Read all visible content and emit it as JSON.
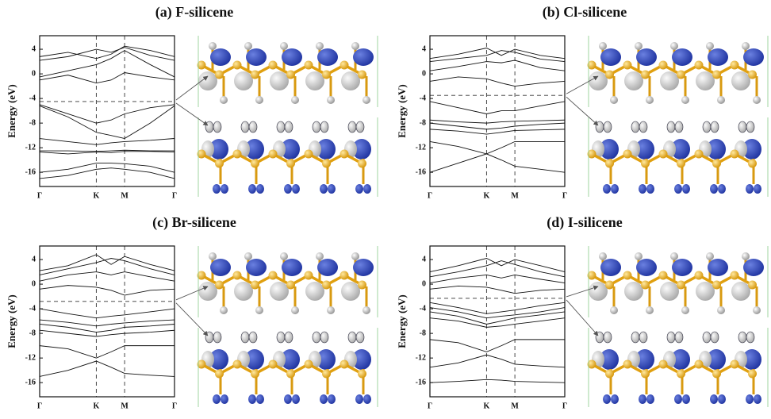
{
  "chart_data": [
    {
      "type": "line",
      "title": "(a) F-silicene",
      "y_label": "Energy (eV)",
      "x": [
        0,
        0.21,
        0.42,
        0.53,
        0.63,
        0.82,
        1
      ],
      "xlim": [
        0,
        1
      ],
      "xticks": [
        {
          "value": 0,
          "label": "Γ"
        },
        {
          "value": 0.42,
          "label": "K"
        },
        {
          "value": 0.63,
          "label": "M"
        },
        {
          "value": 1,
          "label": "Γ"
        }
      ],
      "ylim": [
        -18.3,
        6.2
      ],
      "yticks": [
        4,
        0,
        -4,
        -8,
        -12,
        -16
      ],
      "fermi_level": -4.5,
      "series": [
        {
          "color": "#111111",
          "values": [
            2.8,
            3.5,
            2.5,
            3.2,
            4.5,
            3.8,
            2.8
          ]
        },
        {
          "color": "#111111",
          "values": [
            2.2,
            2.8,
            4.0,
            3.5,
            4.3,
            3.0,
            2.2
          ]
        },
        {
          "color": "#111111",
          "values": [
            -0.5,
            0.5,
            1.5,
            2.5,
            3.8,
            1.5,
            -0.5
          ]
        },
        {
          "color": "#111111",
          "values": [
            -1.0,
            -0.2,
            -1.5,
            -1.0,
            0.2,
            -0.5,
            -1.0
          ]
        },
        {
          "color": "#111111",
          "values": [
            -5,
            -6.5,
            -8,
            -7.5,
            -6.5,
            -5.5,
            -5
          ]
        },
        {
          "color": "#111111",
          "values": [
            -5.2,
            -7,
            -9.5,
            -10,
            -10.5,
            -8,
            -5.2
          ]
        },
        {
          "color": "#111111",
          "values": [
            -10.5,
            -11,
            -11.5,
            -11.2,
            -11,
            -10.8,
            -10.5
          ]
        },
        {
          "color": "#111111",
          "values": [
            -12.5,
            -12.5,
            -12.6,
            -12.5,
            -12.4,
            -12.5,
            -12.5
          ]
        },
        {
          "color": "#111111",
          "values": [
            -12.7,
            -13,
            -12.7,
            -12.8,
            -12.6,
            -12.6,
            -12.7
          ]
        },
        {
          "color": "#111111",
          "values": [
            -16,
            -15.5,
            -14.5,
            -14.5,
            -14.6,
            -15,
            -16
          ]
        },
        {
          "color": "#111111",
          "values": [
            -17,
            -16.5,
            -15.5,
            -15.3,
            -15.5,
            -16,
            -17
          ]
        }
      ]
    },
    {
      "type": "line",
      "title": "(b) Cl-silicene",
      "y_label": "Energy (eV)",
      "x": [
        0,
        0.21,
        0.42,
        0.53,
        0.63,
        0.82,
        1
      ],
      "xlim": [
        0,
        1
      ],
      "xticks": [
        {
          "value": 0,
          "label": "Γ"
        },
        {
          "value": 0.42,
          "label": "K"
        },
        {
          "value": 0.63,
          "label": "M"
        },
        {
          "value": 1,
          "label": "Γ"
        }
      ],
      "ylim": [
        -18.3,
        6.2
      ],
      "yticks": [
        4,
        0,
        -4,
        -8,
        -12,
        -16
      ],
      "fermi_level": -3.5,
      "series": [
        {
          "color": "#111111",
          "values": [
            2.5,
            3.2,
            4.2,
            3.0,
            4.0,
            3.0,
            2.5
          ]
        },
        {
          "color": "#111111",
          "values": [
            2.0,
            2.5,
            3.0,
            3.8,
            3.5,
            2.4,
            2.0
          ]
        },
        {
          "color": "#111111",
          "values": [
            0.5,
            1.2,
            2.0,
            1.8,
            2.2,
            1.0,
            0.5
          ]
        },
        {
          "color": "#111111",
          "values": [
            -1.2,
            -0.5,
            -0.8,
            -1.5,
            -2.0,
            -1.5,
            -1.2
          ]
        },
        {
          "color": "#111111",
          "values": [
            -4.5,
            -5.5,
            -6.5,
            -6.0,
            -6.0,
            -5.2,
            -4.5
          ]
        },
        {
          "color": "#111111",
          "values": [
            -7.5,
            -7.8,
            -8.0,
            -7.8,
            -7.7,
            -7.6,
            -7.5
          ]
        },
        {
          "color": "#111111",
          "values": [
            -8.0,
            -8.5,
            -9.0,
            -8.8,
            -8.5,
            -8.2,
            -8.0
          ]
        },
        {
          "color": "#111111",
          "values": [
            -9.0,
            -9.3,
            -9.8,
            -9.5,
            -9.2,
            -9.1,
            -9.0
          ]
        },
        {
          "color": "#111111",
          "values": [
            -11.0,
            -11.8,
            -13.0,
            -12.0,
            -11.0,
            -11.0,
            -11.0
          ]
        },
        {
          "color": "#111111",
          "values": [
            -16.0,
            -14.5,
            -13.0,
            -14.0,
            -15.0,
            -15.5,
            -16.0
          ]
        }
      ]
    },
    {
      "type": "line",
      "title": "(c) Br-silicene",
      "y_label": "Energy (eV)",
      "x": [
        0,
        0.21,
        0.42,
        0.53,
        0.63,
        0.82,
        1
      ],
      "xlim": [
        0,
        1
      ],
      "xticks": [
        {
          "value": 0,
          "label": "Γ"
        },
        {
          "value": 0.42,
          "label": "K"
        },
        {
          "value": 0.63,
          "label": "M"
        },
        {
          "value": 1,
          "label": "Γ"
        }
      ],
      "ylim": [
        -18.3,
        6.2
      ],
      "yticks": [
        4,
        0,
        -4,
        -8,
        -12,
        -16
      ],
      "fermi_level": -2.8,
      "series": [
        {
          "color": "#111111",
          "values": [
            2.2,
            3.0,
            4.8,
            3.2,
            4.5,
            3.2,
            2.2
          ]
        },
        {
          "color": "#111111",
          "values": [
            1.5,
            2.5,
            3.5,
            4.2,
            3.8,
            2.5,
            1.5
          ]
        },
        {
          "color": "#111111",
          "values": [
            0.5,
            1.5,
            2.0,
            1.5,
            2.0,
            1.2,
            0.5
          ]
        },
        {
          "color": "#111111",
          "values": [
            -0.8,
            -0.2,
            -0.5,
            -1.0,
            -1.8,
            -1.0,
            -0.8
          ]
        },
        {
          "color": "#111111",
          "values": [
            -4.0,
            -4.8,
            -5.5,
            -5.2,
            -5.0,
            -4.5,
            -4.0
          ]
        },
        {
          "color": "#111111",
          "values": [
            -5.8,
            -6.2,
            -6.8,
            -6.5,
            -6.3,
            -6.0,
            -5.8
          ]
        },
        {
          "color": "#111111",
          "values": [
            -6.5,
            -7.0,
            -7.8,
            -7.5,
            -7.0,
            -6.8,
            -6.5
          ]
        },
        {
          "color": "#111111",
          "values": [
            -7.5,
            -8.0,
            -8.5,
            -8.2,
            -8.0,
            -7.8,
            -7.5
          ]
        },
        {
          "color": "#111111",
          "values": [
            -10.0,
            -10.5,
            -12.0,
            -11.0,
            -10.0,
            -10.0,
            -10.0
          ]
        },
        {
          "color": "#111111",
          "values": [
            -15.0,
            -14.0,
            -12.5,
            -13.5,
            -14.5,
            -14.8,
            -15.0
          ]
        }
      ]
    },
    {
      "type": "line",
      "title": "(d) I-silicene",
      "y_label": "Energy (eV)",
      "x": [
        0,
        0.21,
        0.42,
        0.53,
        0.63,
        0.82,
        1
      ],
      "xlim": [
        0,
        1
      ],
      "xticks": [
        {
          "value": 0,
          "label": "Γ"
        },
        {
          "value": 0.42,
          "label": "K"
        },
        {
          "value": 0.63,
          "label": "M"
        },
        {
          "value": 1,
          "label": "Γ"
        }
      ],
      "ylim": [
        -18.3,
        6.2
      ],
      "yticks": [
        4,
        0,
        -4,
        -8,
        -12,
        -16
      ],
      "fermi_level": -2.3,
      "series": [
        {
          "color": "#111111",
          "values": [
            2.0,
            3.0,
            4.2,
            3.0,
            4.0,
            3.0,
            2.0
          ]
        },
        {
          "color": "#111111",
          "values": [
            1.2,
            2.0,
            3.0,
            3.8,
            3.2,
            2.0,
            1.2
          ]
        },
        {
          "color": "#111111",
          "values": [
            0.2,
            1.0,
            1.5,
            1.0,
            1.5,
            0.8,
            0.2
          ]
        },
        {
          "color": "#111111",
          "values": [
            -0.8,
            -0.3,
            -0.5,
            -1.0,
            -1.5,
            -1.0,
            -0.8
          ]
        },
        {
          "color": "#111111",
          "values": [
            -3.0,
            -3.8,
            -4.8,
            -4.5,
            -4.2,
            -3.5,
            -3.0
          ]
        },
        {
          "color": "#111111",
          "values": [
            -3.8,
            -4.5,
            -5.5,
            -5.2,
            -5.0,
            -4.5,
            -3.8
          ]
        },
        {
          "color": "#111111",
          "values": [
            -4.5,
            -5.2,
            -6.5,
            -6.0,
            -5.5,
            -5.0,
            -4.5
          ]
        },
        {
          "color": "#111111",
          "values": [
            -5.5,
            -6.0,
            -7.0,
            -6.8,
            -6.5,
            -6.0,
            -5.5
          ]
        },
        {
          "color": "#111111",
          "values": [
            -9.0,
            -9.5,
            -11.0,
            -10.0,
            -9.0,
            -9.0,
            -9.0
          ]
        },
        {
          "color": "#111111",
          "values": [
            -13.5,
            -12.8,
            -11.5,
            -12.2,
            -13.0,
            -13.3,
            -13.5
          ]
        },
        {
          "color": "#111111",
          "values": [
            -16.0,
            -15.8,
            -15.5,
            -15.6,
            -15.8,
            -15.9,
            -16.0
          ]
        }
      ]
    }
  ]
}
